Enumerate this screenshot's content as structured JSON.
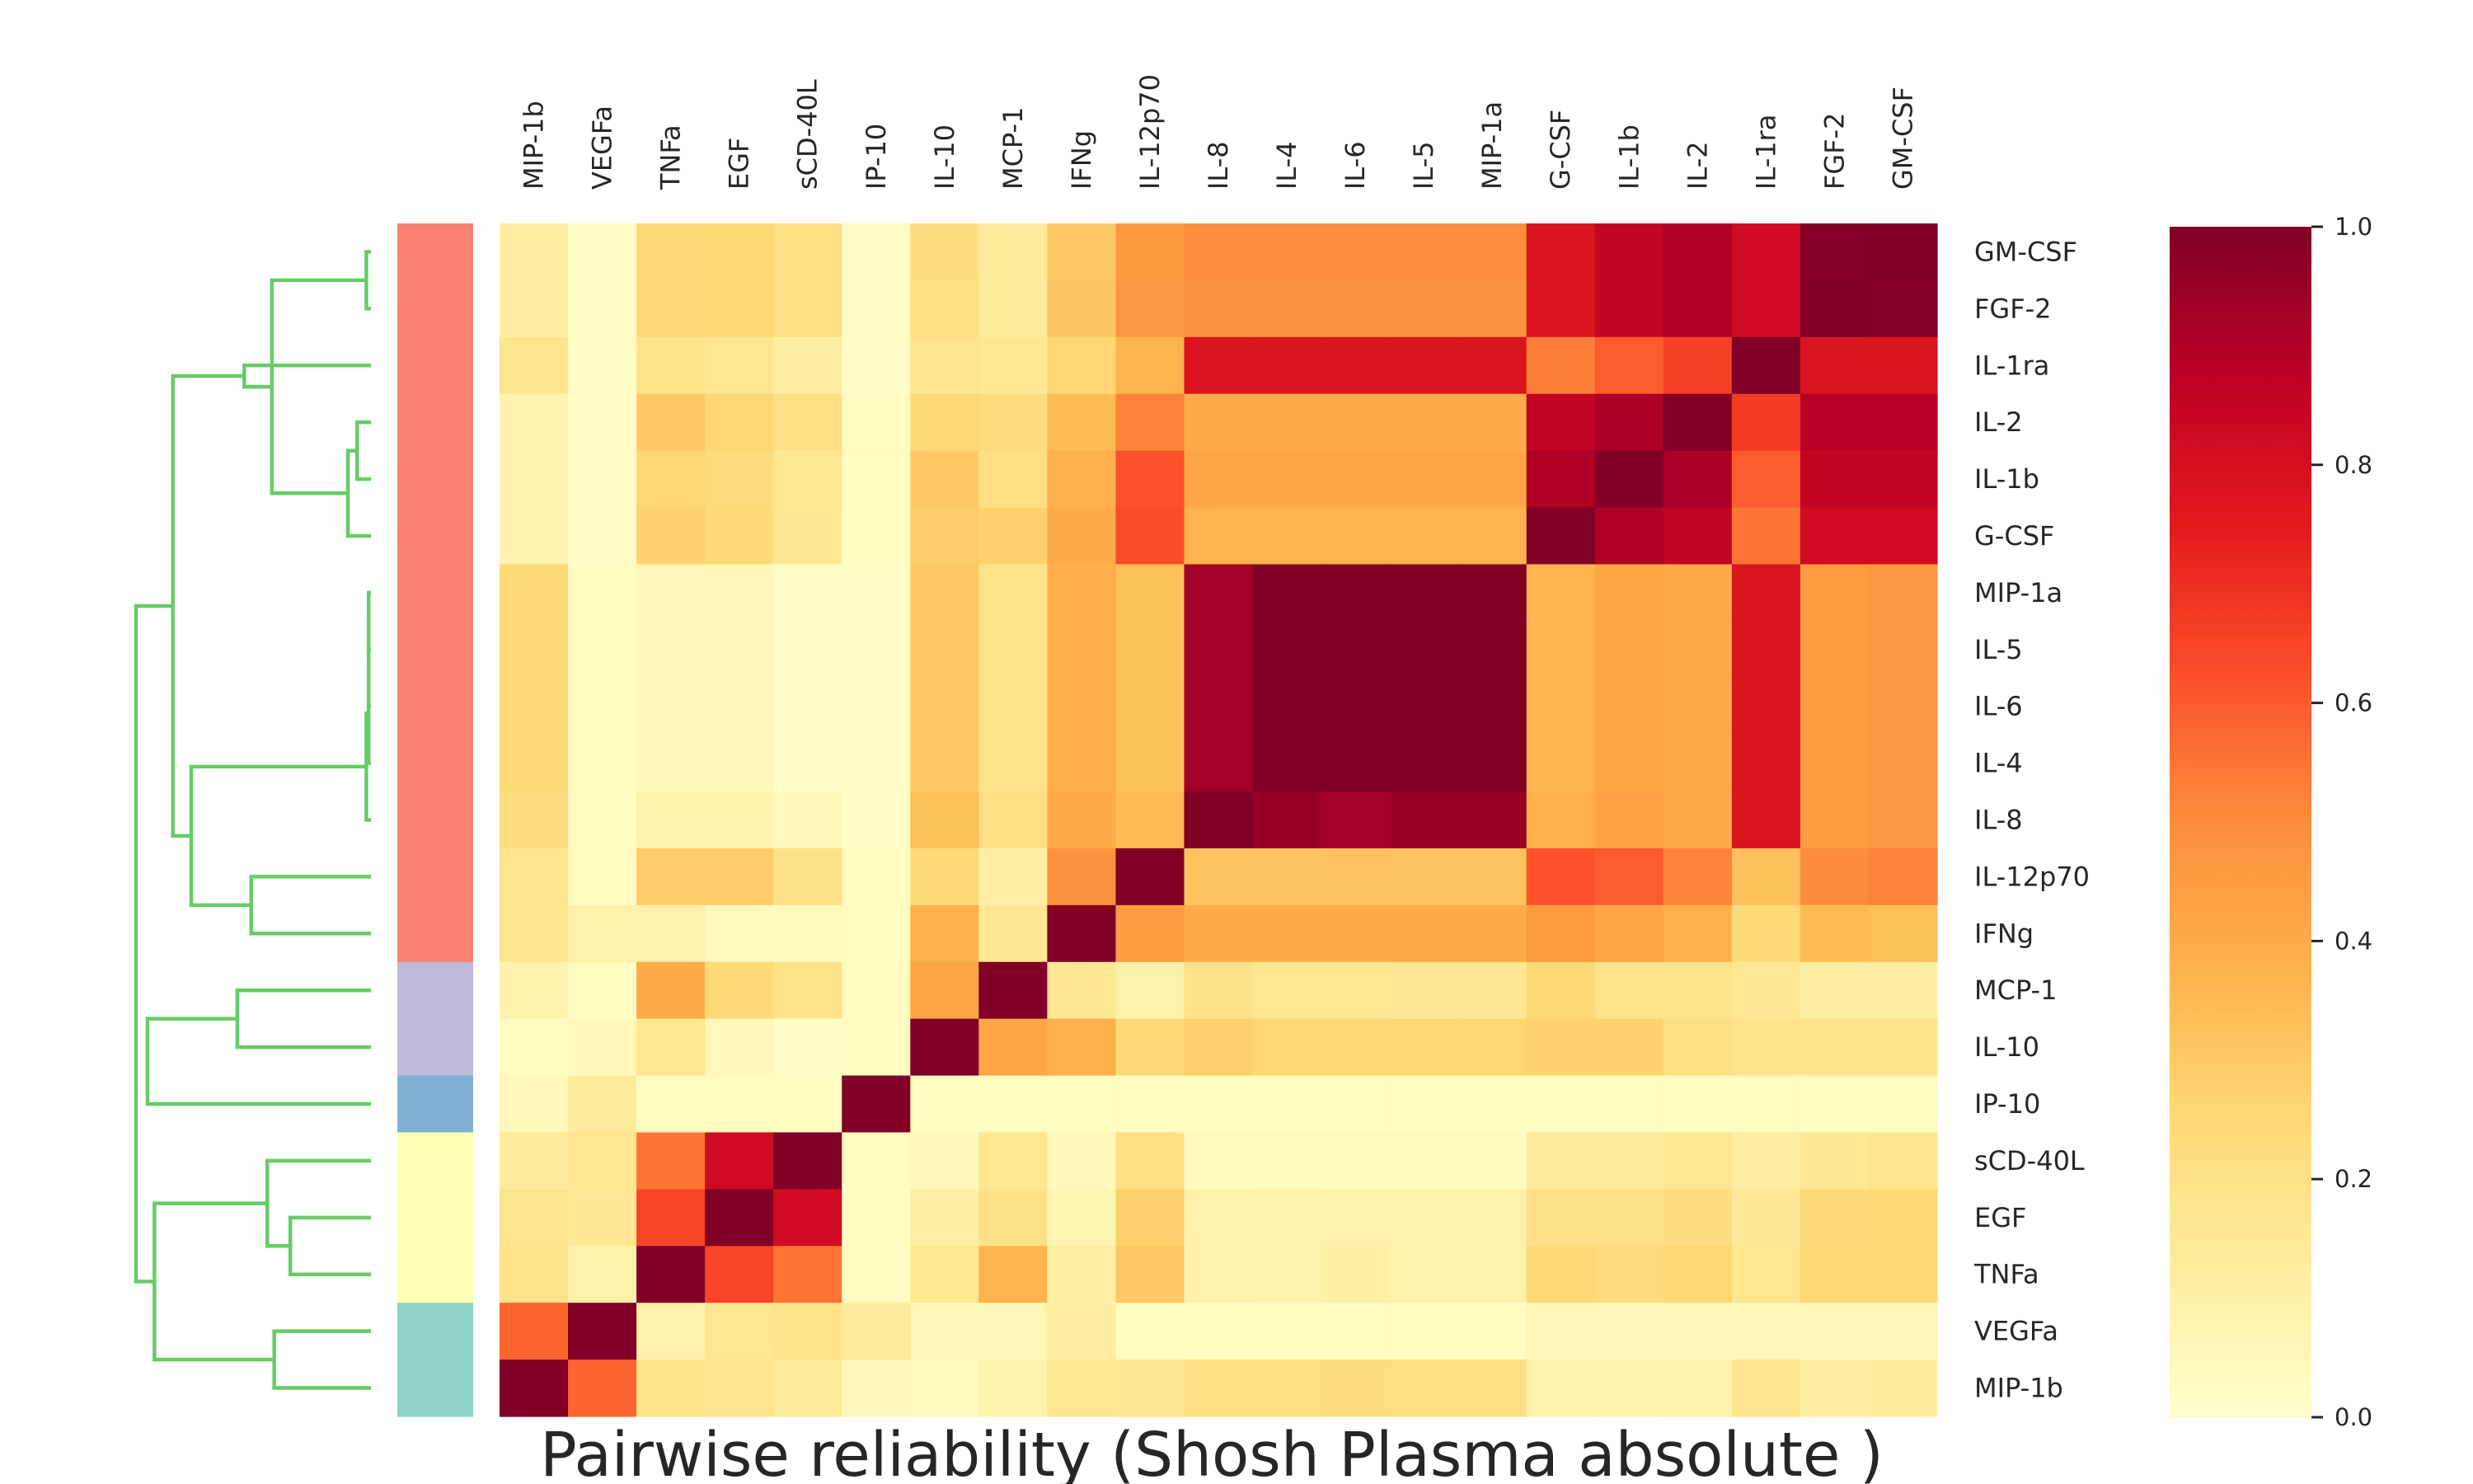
{
  "chart_data": {
    "type": "heatmap",
    "title": "Pairwise reliability (Shosh Plasma absolute )",
    "columns": [
      "MIP-1b",
      "VEGFa",
      "TNFa",
      "EGF",
      "sCD-40L",
      "IP-10",
      "IL-10",
      "MCP-1",
      "IFNg",
      "IL-12p70",
      "IL-8",
      "IL-4",
      "IL-6",
      "IL-5",
      "MIP-1a",
      "G-CSF",
      "IL-1b",
      "IL-2",
      "IL-1ra",
      "FGF-2",
      "GM-CSF"
    ],
    "rows": [
      "GM-CSF",
      "FGF-2",
      "IL-1ra",
      "IL-2",
      "IL-1b",
      "G-CSF",
      "MIP-1a",
      "IL-5",
      "IL-6",
      "IL-4",
      "IL-8",
      "IL-12p70",
      "IFNg",
      "MCP-1",
      "IL-10",
      "IP-10",
      "sCD-40L",
      "EGF",
      "TNFa",
      "VEGFa",
      "MIP-1b"
    ],
    "values": [
      [
        0.12,
        0.02,
        0.24,
        0.25,
        0.21,
        0.02,
        0.22,
        0.14,
        0.3,
        0.46,
        0.49,
        0.49,
        0.49,
        0.49,
        0.49,
        0.78,
        0.85,
        0.9,
        0.82,
        0.99,
        1.0
      ],
      [
        0.12,
        0.02,
        0.24,
        0.25,
        0.21,
        0.02,
        0.21,
        0.13,
        0.31,
        0.47,
        0.48,
        0.48,
        0.48,
        0.48,
        0.48,
        0.78,
        0.85,
        0.9,
        0.82,
        1.0,
        0.99
      ],
      [
        0.18,
        0.02,
        0.19,
        0.17,
        0.12,
        0.02,
        0.18,
        0.17,
        0.26,
        0.37,
        0.78,
        0.78,
        0.78,
        0.78,
        0.78,
        0.53,
        0.6,
        0.66,
        1.0,
        0.78,
        0.78
      ],
      [
        0.08,
        0.02,
        0.3,
        0.26,
        0.21,
        0.03,
        0.25,
        0.23,
        0.35,
        0.52,
        0.4,
        0.4,
        0.4,
        0.4,
        0.4,
        0.86,
        0.91,
        1.0,
        0.67,
        0.88,
        0.88
      ],
      [
        0.08,
        0.02,
        0.26,
        0.23,
        0.17,
        0.03,
        0.3,
        0.21,
        0.38,
        0.62,
        0.42,
        0.42,
        0.42,
        0.42,
        0.42,
        0.9,
        1.0,
        0.91,
        0.6,
        0.85,
        0.85
      ],
      [
        0.08,
        0.02,
        0.27,
        0.24,
        0.16,
        0.03,
        0.29,
        0.27,
        0.4,
        0.63,
        0.37,
        0.37,
        0.37,
        0.37,
        0.37,
        1.0,
        0.9,
        0.86,
        0.55,
        0.82,
        0.82
      ],
      [
        0.24,
        0.03,
        0.06,
        0.05,
        0.02,
        0.02,
        0.3,
        0.19,
        0.39,
        0.33,
        0.93,
        1.0,
        1.0,
        1.0,
        1.0,
        0.37,
        0.42,
        0.4,
        0.78,
        0.45,
        0.47
      ],
      [
        0.24,
        0.03,
        0.06,
        0.05,
        0.02,
        0.02,
        0.3,
        0.19,
        0.39,
        0.33,
        0.93,
        1.0,
        1.0,
        1.0,
        1.0,
        0.37,
        0.42,
        0.4,
        0.78,
        0.45,
        0.47
      ],
      [
        0.24,
        0.03,
        0.06,
        0.05,
        0.02,
        0.02,
        0.3,
        0.19,
        0.39,
        0.33,
        0.93,
        1.0,
        1.0,
        1.0,
        1.0,
        0.37,
        0.42,
        0.4,
        0.78,
        0.45,
        0.47
      ],
      [
        0.24,
        0.03,
        0.06,
        0.05,
        0.02,
        0.02,
        0.3,
        0.19,
        0.39,
        0.33,
        0.93,
        1.0,
        1.0,
        1.0,
        1.0,
        0.37,
        0.42,
        0.4,
        0.78,
        0.45,
        0.47
      ],
      [
        0.22,
        0.03,
        0.1,
        0.09,
        0.05,
        0.02,
        0.33,
        0.21,
        0.4,
        0.35,
        1.0,
        0.95,
        0.93,
        0.95,
        0.95,
        0.38,
        0.43,
        0.4,
        0.78,
        0.45,
        0.47
      ],
      [
        0.18,
        0.03,
        0.29,
        0.29,
        0.2,
        0.03,
        0.24,
        0.11,
        0.48,
        1.0,
        0.32,
        0.32,
        0.32,
        0.32,
        0.32,
        0.62,
        0.6,
        0.52,
        0.33,
        0.5,
        0.52
      ],
      [
        0.18,
        0.1,
        0.1,
        0.04,
        0.04,
        0.03,
        0.38,
        0.16,
        1.0,
        0.45,
        0.4,
        0.4,
        0.4,
        0.4,
        0.4,
        0.45,
        0.42,
        0.38,
        0.24,
        0.35,
        0.33
      ],
      [
        0.09,
        0.03,
        0.4,
        0.24,
        0.19,
        0.03,
        0.42,
        1.0,
        0.16,
        0.1,
        0.2,
        0.17,
        0.17,
        0.16,
        0.16,
        0.25,
        0.19,
        0.19,
        0.16,
        0.12,
        0.12
      ],
      [
        0.03,
        0.05,
        0.17,
        0.05,
        0.02,
        0.03,
        1.0,
        0.42,
        0.38,
        0.24,
        0.28,
        0.26,
        0.26,
        0.26,
        0.26,
        0.27,
        0.27,
        0.21,
        0.19,
        0.19,
        0.19
      ],
      [
        0.05,
        0.14,
        0.03,
        0.03,
        0.03,
        1.0,
        0.03,
        0.03,
        0.03,
        0.03,
        0.03,
        0.03,
        0.03,
        0.03,
        0.03,
        0.03,
        0.03,
        0.03,
        0.03,
        0.03,
        0.03
      ],
      [
        0.14,
        0.17,
        0.55,
        0.82,
        1.0,
        0.03,
        0.05,
        0.17,
        0.05,
        0.21,
        0.04,
        0.04,
        0.04,
        0.04,
        0.04,
        0.14,
        0.14,
        0.17,
        0.12,
        0.16,
        0.18
      ],
      [
        0.18,
        0.16,
        0.65,
        1.0,
        0.82,
        0.03,
        0.11,
        0.2,
        0.07,
        0.28,
        0.1,
        0.09,
        0.1,
        0.1,
        0.1,
        0.2,
        0.2,
        0.22,
        0.15,
        0.24,
        0.25
      ],
      [
        0.19,
        0.1,
        1.0,
        0.65,
        0.55,
        0.03,
        0.17,
        0.37,
        0.11,
        0.3,
        0.1,
        0.09,
        0.11,
        0.1,
        0.1,
        0.25,
        0.23,
        0.26,
        0.17,
        0.25,
        0.25
      ],
      [
        0.58,
        1.0,
        0.1,
        0.17,
        0.19,
        0.14,
        0.05,
        0.06,
        0.12,
        0.03,
        0.03,
        0.03,
        0.03,
        0.03,
        0.03,
        0.06,
        0.06,
        0.06,
        0.06,
        0.06,
        0.06
      ],
      [
        1.0,
        0.58,
        0.19,
        0.18,
        0.14,
        0.05,
        0.04,
        0.08,
        0.17,
        0.16,
        0.21,
        0.21,
        0.22,
        0.21,
        0.21,
        0.09,
        0.09,
        0.1,
        0.18,
        0.12,
        0.13
      ]
    ],
    "row_cluster_colors": [
      "#fa8072",
      "#fa8072",
      "#fa8072",
      "#fa8072",
      "#fa8072",
      "#fa8072",
      "#fa8072",
      "#fa8072",
      "#fa8072",
      "#fa8072",
      "#fa8072",
      "#fa8072",
      "#fa8072",
      "#bebada",
      "#bebada",
      "#80b1d3",
      "#ffffb3",
      "#ffffb3",
      "#ffffb3",
      "#8dd3c7",
      "#8dd3c7"
    ],
    "dendrogram": {
      "merges": [
        [
          6,
          7,
          0.01
        ],
        [
          21,
          8,
          0.01
        ],
        [
          22,
          9,
          0.01
        ],
        [
          23,
          10,
          0.02
        ],
        [
          0,
          1,
          0.02
        ],
        [
          3,
          4,
          0.06
        ],
        [
          26,
          5,
          0.1
        ],
        [
          25,
          27,
          0.43
        ],
        [
          28,
          2,
          0.55
        ],
        [
          11,
          12,
          0.52
        ],
        [
          24,
          30,
          0.78
        ],
        [
          13,
          14,
          0.58
        ],
        [
          17,
          18,
          0.35
        ],
        [
          19,
          20,
          0.42
        ],
        [
          16,
          33,
          0.45
        ],
        [
          29,
          31,
          0.86
        ],
        [
          34,
          35,
          0.94
        ],
        [
          32,
          15,
          0.97
        ],
        [
          36,
          37,
          1.02
        ]
      ],
      "color": "#66cc66"
    },
    "colorbar": {
      "range": [
        0.0,
        1.0
      ],
      "ticks": [
        "0.0",
        "0.2",
        "0.4",
        "0.6",
        "0.8",
        "1.0"
      ],
      "colormap": "YlOrRd"
    },
    "xlabel": "",
    "ylabel": ""
  }
}
